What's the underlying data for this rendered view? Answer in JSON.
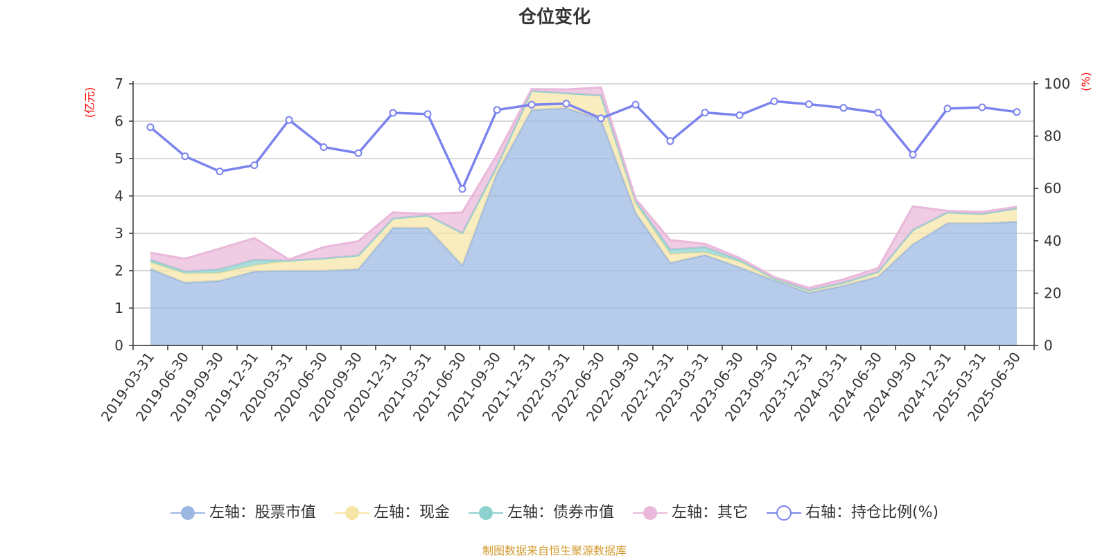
{
  "chart_data": {
    "type": "area",
    "title": "仓位变化",
    "categories": [
      "2019-03-31",
      "2019-06-30",
      "2019-09-30",
      "2019-12-31",
      "2020-03-31",
      "2020-06-30",
      "2020-09-30",
      "2020-12-31",
      "2021-03-31",
      "2021-06-30",
      "2021-09-30",
      "2021-12-31",
      "2022-03-31",
      "2022-06-30",
      "2022-09-30",
      "2022-12-31",
      "2023-03-31",
      "2023-06-30",
      "2023-09-30",
      "2023-12-31",
      "2024-03-31",
      "2024-06-30",
      "2024-09-30",
      "2024-12-31",
      "2025-03-31",
      "2025-06-30"
    ],
    "y_left": {
      "unit": "(亿元)",
      "range": [
        0,
        7
      ],
      "ticks": [
        0,
        1,
        2,
        3,
        4,
        5,
        6,
        7
      ]
    },
    "y_right": {
      "unit": "(%)",
      "range": [
        0,
        100
      ],
      "ticks": [
        0,
        20,
        40,
        60,
        80,
        100
      ]
    },
    "series": [
      {
        "name": "左轴：股票市值",
        "axis": "left",
        "stacked": true,
        "color": "#9bb8e2",
        "values": [
          2.05,
          1.68,
          1.73,
          1.98,
          2.0,
          2.0,
          2.04,
          3.15,
          3.14,
          2.14,
          4.61,
          6.3,
          6.35,
          6.05,
          3.55,
          2.21,
          2.42,
          2.09,
          1.74,
          1.41,
          1.6,
          1.84,
          2.71,
          3.27,
          3.27,
          3.31
        ]
      },
      {
        "name": "左轴：现金",
        "axis": "left",
        "stacked": true,
        "color": "#f7e5a6",
        "values": [
          0.17,
          0.24,
          0.21,
          0.16,
          0.27,
          0.33,
          0.37,
          0.25,
          0.34,
          0.87,
          0.19,
          0.51,
          0.4,
          0.64,
          0.25,
          0.24,
          0.07,
          0.15,
          0.05,
          0.07,
          0.08,
          0.13,
          0.38,
          0.29,
          0.25,
          0.36
        ]
      },
      {
        "name": "左轴：债券市值",
        "axis": "left",
        "stacked": true,
        "color": "#8dd1cf",
        "values": [
          0.07,
          0.06,
          0.1,
          0.15,
          0,
          0,
          0,
          0,
          0,
          0,
          0,
          0,
          0,
          0,
          0.07,
          0.12,
          0.14,
          0.05,
          0,
          0,
          0,
          0,
          0,
          0,
          0,
          0
        ]
      },
      {
        "name": "左轴：其它",
        "axis": "left",
        "stacked": true,
        "color": "#e9b8da",
        "values": [
          0.19,
          0.34,
          0.55,
          0.58,
          0.03,
          0.3,
          0.38,
          0.16,
          0.04,
          0.55,
          0.3,
          0.05,
          0.1,
          0.21,
          0.05,
          0.25,
          0.09,
          0.05,
          0.04,
          0.06,
          0.09,
          0.1,
          0.63,
          0.04,
          0.05,
          0.04
        ]
      },
      {
        "name": "右轴：持仓比例(%)",
        "axis": "right",
        "type": "line",
        "color": "#7b83ee",
        "values": [
          83.4,
          72.3,
          66.5,
          68.9,
          86.2,
          75.8,
          73.5,
          88.9,
          88.4,
          59.8,
          90.0,
          92.0,
          92.4,
          86.8,
          92.0,
          78.1,
          89.0,
          88.0,
          93.3,
          92.2,
          90.8,
          89.0,
          72.9,
          90.5,
          91.0,
          89.2
        ]
      }
    ],
    "legend_position": "bottom",
    "grid": true
  },
  "source_note": "制图数据来自恒生聚源数据库"
}
